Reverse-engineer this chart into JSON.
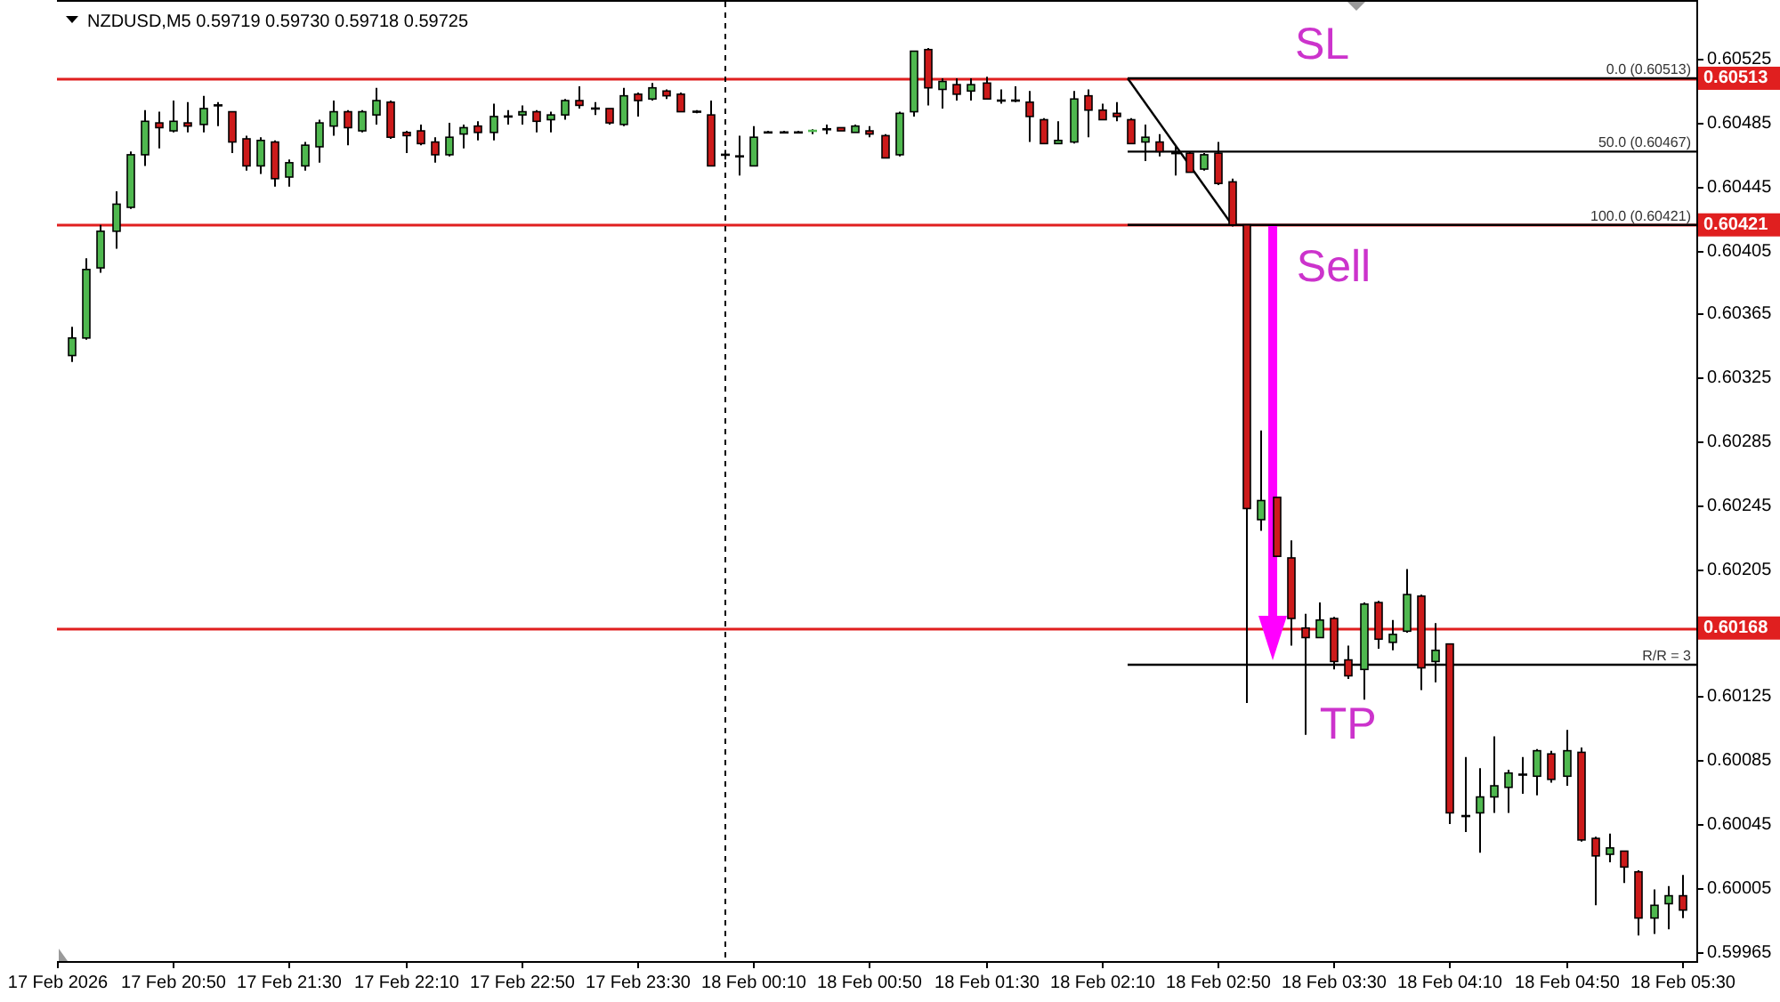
{
  "chart_data": {
    "type": "candlestick",
    "title": "NZDUSD,M5 0.59719 0.59730 0.59718 0.59725",
    "x": [
      "2026-02-17T20:15",
      "2026-02-17T20:20",
      "2026-02-17T20:25",
      "2026-02-17T20:30",
      "2026-02-17T20:35",
      "2026-02-17T20:40",
      "2026-02-17T20:45",
      "2026-02-17T20:50",
      "2026-02-17T20:55",
      "2026-02-17T21:00",
      "2026-02-17T21:05",
      "2026-02-17T21:10",
      "2026-02-17T21:15",
      "2026-02-17T21:20",
      "2026-02-17T21:25",
      "2026-02-17T21:30",
      "2026-02-17T21:35",
      "2026-02-17T21:40",
      "2026-02-17T21:45",
      "2026-02-17T21:50",
      "2026-02-17T21:55",
      "2026-02-17T22:00",
      "2026-02-17T22:05",
      "2026-02-17T22:10",
      "2026-02-17T22:15",
      "2026-02-17T22:20",
      "2026-02-17T22:25",
      "2026-02-17T22:30",
      "2026-02-17T22:35",
      "2026-02-17T22:40",
      "2026-02-17T22:45",
      "2026-02-17T22:50",
      "2026-02-17T22:55",
      "2026-02-17T23:00",
      "2026-02-17T23:05",
      "2026-02-17T23:10",
      "2026-02-17T23:15",
      "2026-02-17T23:20",
      "2026-02-17T23:25",
      "2026-02-17T23:30",
      "2026-02-17T23:35",
      "2026-02-17T23:40",
      "2026-02-17T23:45",
      "2026-02-17T23:50",
      "2026-02-17T23:55",
      "2026-02-18T00:00",
      "2026-02-18T00:05",
      "2026-02-18T00:10",
      "2026-02-18T00:15",
      "2026-02-18T00:20",
      "2026-02-18T00:25",
      "2026-02-18T00:30",
      "2026-02-18T00:35",
      "2026-02-18T00:40",
      "2026-02-18T00:45",
      "2026-02-18T00:50",
      "2026-02-18T00:55",
      "2026-02-18T01:00",
      "2026-02-18T01:05",
      "2026-02-18T01:10",
      "2026-02-18T01:15",
      "2026-02-18T01:20",
      "2026-02-18T01:25",
      "2026-02-18T01:30",
      "2026-02-18T01:35",
      "2026-02-18T01:40",
      "2026-02-18T01:45",
      "2026-02-18T01:50",
      "2026-02-18T01:55",
      "2026-02-18T02:00",
      "2026-02-18T02:05",
      "2026-02-18T02:10",
      "2026-02-18T02:15",
      "2026-02-18T02:20",
      "2026-02-18T02:25",
      "2026-02-18T02:30",
      "2026-02-18T02:35",
      "2026-02-18T02:40",
      "2026-02-18T02:45",
      "2026-02-18T02:50",
      "2026-02-18T02:55",
      "2026-02-18T03:00",
      "2026-02-18T03:05",
      "2026-02-18T03:10",
      "2026-02-18T03:15",
      "2026-02-18T03:20",
      "2026-02-18T03:25",
      "2026-02-18T03:30",
      "2026-02-18T03:35",
      "2026-02-18T03:40",
      "2026-02-18T03:45",
      "2026-02-18T03:50",
      "2026-02-18T03:55",
      "2026-02-18T04:00",
      "2026-02-18T04:05",
      "2026-02-18T04:10",
      "2026-02-18T04:15",
      "2026-02-18T04:20",
      "2026-02-18T04:25",
      "2026-02-18T04:30",
      "2026-02-18T04:35",
      "2026-02-18T04:40",
      "2026-02-18T04:45",
      "2026-02-18T04:50",
      "2026-02-18T04:55",
      "2026-02-18T05:00",
      "2026-02-18T05:05",
      "2026-02-18T05:10",
      "2026-02-18T05:15",
      "2026-02-18T05:20",
      "2026-02-18T05:25",
      "2026-02-18T05:30"
    ],
    "ohlc": [
      [
        0.60339,
        0.60357,
        0.60335,
        0.6035
      ],
      [
        0.6035,
        0.604,
        0.60349,
        0.60393
      ],
      [
        0.60394,
        0.60421,
        0.60391,
        0.60417
      ],
      [
        0.60417,
        0.60442,
        0.60406,
        0.60434
      ],
      [
        0.60432,
        0.60467,
        0.60431,
        0.60465
      ],
      [
        0.60465,
        0.60493,
        0.60458,
        0.60486
      ],
      [
        0.60485,
        0.60492,
        0.60469,
        0.60482
      ],
      [
        0.6048,
        0.60499,
        0.60479,
        0.60486
      ],
      [
        0.60485,
        0.60498,
        0.60479,
        0.60483
      ],
      [
        0.60484,
        0.60502,
        0.60479,
        0.60494
      ],
      [
        0.60496,
        0.60498,
        0.60483,
        0.60496
      ],
      [
        0.60492,
        0.60492,
        0.60466,
        0.60473
      ],
      [
        0.60475,
        0.60477,
        0.60455,
        0.60458
      ],
      [
        0.60458,
        0.60476,
        0.60453,
        0.60474
      ],
      [
        0.60473,
        0.60474,
        0.60445,
        0.6045
      ],
      [
        0.60451,
        0.60462,
        0.60445,
        0.6046
      ],
      [
        0.60458,
        0.60473,
        0.60455,
        0.60471
      ],
      [
        0.6047,
        0.60487,
        0.6046,
        0.60485
      ],
      [
        0.60483,
        0.60499,
        0.60477,
        0.60492
      ],
      [
        0.60492,
        0.60493,
        0.60471,
        0.60482
      ],
      [
        0.6048,
        0.60493,
        0.60479,
        0.60492
      ],
      [
        0.6049,
        0.60507,
        0.60484,
        0.60499
      ],
      [
        0.60498,
        0.60499,
        0.60475,
        0.60476
      ],
      [
        0.60479,
        0.6048,
        0.60466,
        0.60477
      ],
      [
        0.6048,
        0.60484,
        0.60471,
        0.60472
      ],
      [
        0.60473,
        0.60476,
        0.6046,
        0.60465
      ],
      [
        0.60465,
        0.60485,
        0.60464,
        0.60476
      ],
      [
        0.60478,
        0.60484,
        0.60469,
        0.60482
      ],
      [
        0.60483,
        0.60486,
        0.60474,
        0.60479
      ],
      [
        0.60479,
        0.60497,
        0.60474,
        0.60489
      ],
      [
        0.60489,
        0.60493,
        0.60484,
        0.60489
      ],
      [
        0.6049,
        0.60496,
        0.60484,
        0.60492
      ],
      [
        0.60492,
        0.60493,
        0.60479,
        0.60486
      ],
      [
        0.60487,
        0.60492,
        0.60479,
        0.6049
      ],
      [
        0.6049,
        0.605,
        0.60487,
        0.60499
      ],
      [
        0.60499,
        0.60508,
        0.60494,
        0.60496
      ],
      [
        0.60494,
        0.60498,
        0.6049,
        0.60494
      ],
      [
        0.60494,
        0.60494,
        0.60484,
        0.60485
      ],
      [
        0.60484,
        0.60507,
        0.60483,
        0.60502
      ],
      [
        0.60503,
        0.60504,
        0.60489,
        0.60499
      ],
      [
        0.605,
        0.6051,
        0.60499,
        0.60507
      ],
      [
        0.60505,
        0.60506,
        0.605,
        0.60502
      ],
      [
        0.60503,
        0.60504,
        0.60492,
        0.60492
      ],
      [
        0.60492,
        0.60493,
        0.60491,
        0.60492
      ],
      [
        0.6049,
        0.60499,
        0.60458,
        0.60458
      ],
      [
        0.60465,
        0.60468,
        0.60462,
        0.60465
      ],
      [
        0.60464,
        0.60477,
        0.60452,
        0.60464
      ],
      [
        0.60458,
        0.60483,
        0.60458,
        0.60476
      ],
      [
        0.60479,
        0.6048,
        0.60479,
        0.60479
      ],
      [
        0.60479,
        0.6048,
        0.60479,
        0.60479
      ],
      [
        0.60479,
        0.6048,
        0.60479,
        0.60479
      ],
      [
        0.60479,
        0.60481,
        0.60478,
        0.6048
      ],
      [
        0.60481,
        0.60484,
        0.60478,
        0.60481
      ],
      [
        0.60482,
        0.60482,
        0.6048,
        0.6048
      ],
      [
        0.60479,
        0.60484,
        0.60479,
        0.60483
      ],
      [
        0.6048,
        0.60483,
        0.60476,
        0.60478
      ],
      [
        0.60477,
        0.60478,
        0.60463,
        0.60463
      ],
      [
        0.60465,
        0.60492,
        0.60464,
        0.60491
      ],
      [
        0.60492,
        0.6053,
        0.60489,
        0.6053
      ],
      [
        0.60531,
        0.60532,
        0.60496,
        0.60507
      ],
      [
        0.60506,
        0.60513,
        0.60494,
        0.60511
      ],
      [
        0.60509,
        0.60513,
        0.60499,
        0.60503
      ],
      [
        0.60505,
        0.60513,
        0.60499,
        0.60509
      ],
      [
        0.6051,
        0.60514,
        0.605,
        0.605
      ],
      [
        0.60499,
        0.60506,
        0.60497,
        0.60499
      ],
      [
        0.60499,
        0.60508,
        0.60498,
        0.60499
      ],
      [
        0.60498,
        0.60505,
        0.60473,
        0.60489
      ],
      [
        0.60487,
        0.60488,
        0.60472,
        0.60472
      ],
      [
        0.60472,
        0.60486,
        0.60472,
        0.60474
      ],
      [
        0.60473,
        0.60505,
        0.60472,
        0.605
      ],
      [
        0.60502,
        0.60506,
        0.60476,
        0.60493
      ],
      [
        0.60493,
        0.60497,
        0.60487,
        0.60487
      ],
      [
        0.60491,
        0.60498,
        0.60486,
        0.60489
      ],
      [
        0.60487,
        0.60488,
        0.60472,
        0.60472
      ],
      [
        0.60473,
        0.60484,
        0.60461,
        0.60476
      ],
      [
        0.60473,
        0.60478,
        0.60464,
        0.60467
      ],
      [
        0.60466,
        0.60471,
        0.60452,
        0.60466
      ],
      [
        0.60466,
        0.60467,
        0.60454,
        0.60454
      ],
      [
        0.60456,
        0.60466,
        0.60455,
        0.60465
      ],
      [
        0.60466,
        0.60473,
        0.60446,
        0.60447
      ],
      [
        0.60448,
        0.6045,
        0.6042,
        0.60421
      ],
      [
        0.60421,
        0.60421,
        0.60121,
        0.60243
      ],
      [
        0.60236,
        0.60292,
        0.60229,
        0.60248
      ],
      [
        0.6025,
        0.6025,
        0.60213,
        0.60213
      ],
      [
        0.60212,
        0.60223,
        0.60157,
        0.60174
      ],
      [
        0.60168,
        0.60177,
        0.60101,
        0.60162
      ],
      [
        0.60162,
        0.60184,
        0.60162,
        0.60173
      ],
      [
        0.60174,
        0.60175,
        0.60142,
        0.60147
      ],
      [
        0.60148,
        0.60157,
        0.60136,
        0.60138
      ],
      [
        0.60142,
        0.60184,
        0.60123,
        0.60183
      ],
      [
        0.60184,
        0.60185,
        0.60155,
        0.60161
      ],
      [
        0.60159,
        0.60173,
        0.60154,
        0.60164
      ],
      [
        0.60166,
        0.60205,
        0.60165,
        0.60189
      ],
      [
        0.60188,
        0.60189,
        0.60129,
        0.60143
      ],
      [
        0.60147,
        0.60171,
        0.60134,
        0.60154
      ],
      [
        0.60158,
        0.60158,
        0.60045,
        0.60052
      ],
      [
        0.6005,
        0.60087,
        0.6004,
        0.6005
      ],
      [
        0.60052,
        0.6008,
        0.60027,
        0.60062
      ],
      [
        0.60062,
        0.601,
        0.60052,
        0.60069
      ],
      [
        0.60068,
        0.60079,
        0.60052,
        0.60077
      ],
      [
        0.60076,
        0.60087,
        0.60064,
        0.60076
      ],
      [
        0.60075,
        0.60092,
        0.60063,
        0.60091
      ],
      [
        0.60089,
        0.60091,
        0.60071,
        0.60073
      ],
      [
        0.60075,
        0.60104,
        0.60069,
        0.60091
      ],
      [
        0.6009,
        0.60093,
        0.60034,
        0.60035
      ],
      [
        0.60036,
        0.60037,
        0.59994,
        0.60025
      ],
      [
        0.60026,
        0.60039,
        0.60021,
        0.6003
      ],
      [
        0.60028,
        0.60028,
        0.60008,
        0.60018
      ],
      [
        0.60015,
        0.60016,
        0.59975,
        0.59986
      ],
      [
        0.59986,
        0.60004,
        0.59976,
        0.59994
      ],
      [
        0.59995,
        0.60006,
        0.59979,
        0.6
      ],
      [
        0.6,
        0.60013,
        0.59986,
        0.59991
      ]
    ],
    "colors": [
      "#4fb84f",
      "#4fb84f",
      "#4fb84f",
      "#4fb84f",
      "#4fb84f",
      "#4fb84f",
      "#cc1a1a",
      "#4fb84f",
      "#cc1a1a",
      "#4fb84f",
      "#000000",
      "#cc1a1a",
      "#cc1a1a",
      "#4fb84f",
      "#cc1a1a",
      "#4fb84f",
      "#4fb84f",
      "#4fb84f",
      "#4fb84f",
      "#cc1a1a",
      "#4fb84f",
      "#4fb84f",
      "#cc1a1a",
      "#cc1a1a",
      "#cc1a1a",
      "#cc1a1a",
      "#4fb84f",
      "#4fb84f",
      "#cc1a1a",
      "#4fb84f",
      "#000000",
      "#4fb84f",
      "#cc1a1a",
      "#4fb84f",
      "#4fb84f",
      "#cc1a1a",
      "#000000",
      "#cc1a1a",
      "#4fb84f",
      "#cc1a1a",
      "#4fb84f",
      "#cc1a1a",
      "#cc1a1a",
      "#000000",
      "#cc1a1a",
      "#000000",
      "#000000",
      "#4fb84f",
      "#000000",
      "#000000",
      "#000000",
      "#4fb84f",
      "#000000",
      "#cc1a1a",
      "#4fb84f",
      "#cc1a1a",
      "#cc1a1a",
      "#4fb84f",
      "#4fb84f",
      "#cc1a1a",
      "#4fb84f",
      "#cc1a1a",
      "#4fb84f",
      "#cc1a1a",
      "#000000",
      "#000000",
      "#cc1a1a",
      "#cc1a1a",
      "#4fb84f",
      "#4fb84f",
      "#cc1a1a",
      "#cc1a1a",
      "#cc1a1a",
      "#cc1a1a",
      "#4fb84f",
      "#cc1a1a",
      "#000000",
      "#cc1a1a",
      "#4fb84f",
      "#cc1a1a",
      "#cc1a1a",
      "#cc1a1a",
      "#4fb84f",
      "#cc1a1a",
      "#cc1a1a",
      "#cc1a1a",
      "#4fb84f",
      "#cc1a1a",
      "#cc1a1a",
      "#4fb84f",
      "#cc1a1a",
      "#4fb84f",
      "#4fb84f",
      "#cc1a1a",
      "#4fb84f",
      "#cc1a1a",
      "#000000",
      "#4fb84f",
      "#4fb84f",
      "#4fb84f",
      "#000000",
      "#4fb84f",
      "#cc1a1a",
      "#4fb84f",
      "#cc1a1a",
      "#cc1a1a",
      "#4fb84f",
      "#cc1a1a",
      "#cc1a1a",
      "#4fb84f",
      "#4fb84f",
      "#cc1a1a"
    ],
    "series": [
      {
        "type": "line",
        "color": "#000000",
        "x": [
          "2026-02-18T02:19",
          "2026-02-18T05:35"
        ],
        "values": [
          0.60513,
          0.60513
        ]
      },
      {
        "type": "line",
        "color": "#000000",
        "x": [
          "2026-02-18T02:19",
          "2026-02-18T05:35"
        ],
        "values": [
          0.60467,
          0.60467
        ]
      },
      {
        "type": "line",
        "color": "#000000",
        "x": [
          "2026-02-18T02:19",
          "2026-02-18T05:35"
        ],
        "values": [
          0.60421,
          0.60421
        ]
      },
      {
        "type": "line",
        "color": "#000000",
        "x": [
          "2026-02-18T02:19",
          "2026-02-18T02:55"
        ],
        "values": [
          0.60513,
          0.60421
        ]
      },
      {
        "type": "line",
        "color": "#000000",
        "x": [
          "2026-02-18T02:19",
          "2026-02-18T05:35"
        ],
        "values": [
          0.60145,
          0.60145
        ]
      }
    ],
    "ref_lines": [
      {
        "axis": "y",
        "value": 0.60513,
        "label": "0.60513",
        "color": "#e01f1f"
      },
      {
        "axis": "y",
        "value": 0.60421,
        "label": "0.60421",
        "color": "#e01f1f"
      },
      {
        "axis": "y",
        "value": 0.60168,
        "label": "0.60168",
        "color": "#e01f1f"
      },
      {
        "axis": "x",
        "value": "2026-02-18T00:00",
        "color": "#000000",
        "line_style": "dashed"
      }
    ],
    "annotations": [
      "SL",
      "Sell",
      "TP",
      {
        "text": "0.0 (0.60513)",
        "x": "2026-02-18T05:35",
        "y": 0.60513
      },
      {
        "text": "50.0 (0.60467)",
        "x": "2026-02-18T05:35",
        "y": 0.60467
      },
      {
        "text": "100.0 (0.60421)",
        "x": "2026-02-18T05:35",
        "y": 0.60421
      },
      {
        "text": "R/R = 3",
        "x": "2026-02-18T05:35",
        "y": 0.60145
      }
    ],
    "xlim": [
      "2026-02-17T20:10",
      "2026-02-18T05:35"
    ],
    "xticks": [
      {
        "value": "2026-02-17T20:10",
        "label": "17 Feb 2026"
      },
      {
        "value": "2026-02-17T20:50",
        "label": "17 Feb 20:50"
      },
      {
        "value": "2026-02-17T21:30",
        "label": "17 Feb 21:30"
      },
      {
        "value": "2026-02-17T22:10",
        "label": "17 Feb 22:10"
      },
      {
        "value": "2026-02-17T22:50",
        "label": "17 Feb 22:50"
      },
      {
        "value": "2026-02-17T23:30",
        "label": "17 Feb 23:30"
      },
      {
        "value": "2026-02-18T00:10",
        "label": "18 Feb 00:10"
      },
      {
        "value": "2026-02-18T00:50",
        "label": "18 Feb 00:50"
      },
      {
        "value": "2026-02-18T01:30",
        "label": "18 Feb 01:30"
      },
      {
        "value": "2026-02-18T02:10",
        "label": "18 Feb 02:10"
      },
      {
        "value": "2026-02-18T02:50",
        "label": "18 Feb 02:50"
      },
      {
        "value": "2026-02-18T03:30",
        "label": "18 Feb 03:30"
      },
      {
        "value": "2026-02-18T04:10",
        "label": "18 Feb 04:10"
      },
      {
        "value": "2026-02-18T04:50",
        "label": "18 Feb 04:50"
      },
      {
        "value": "2026-02-18T05:30",
        "label": "18 Feb 05:30"
      }
    ],
    "ylim": [
      0.59959,
      0.60561
    ],
    "yticks": [
      0.59965,
      0.60005,
      0.60045,
      0.60085,
      0.60125,
      0.60205,
      0.60245,
      0.60285,
      0.60325,
      0.60365,
      0.60405,
      0.60445,
      0.60485,
      0.60525
    ]
  }
}
